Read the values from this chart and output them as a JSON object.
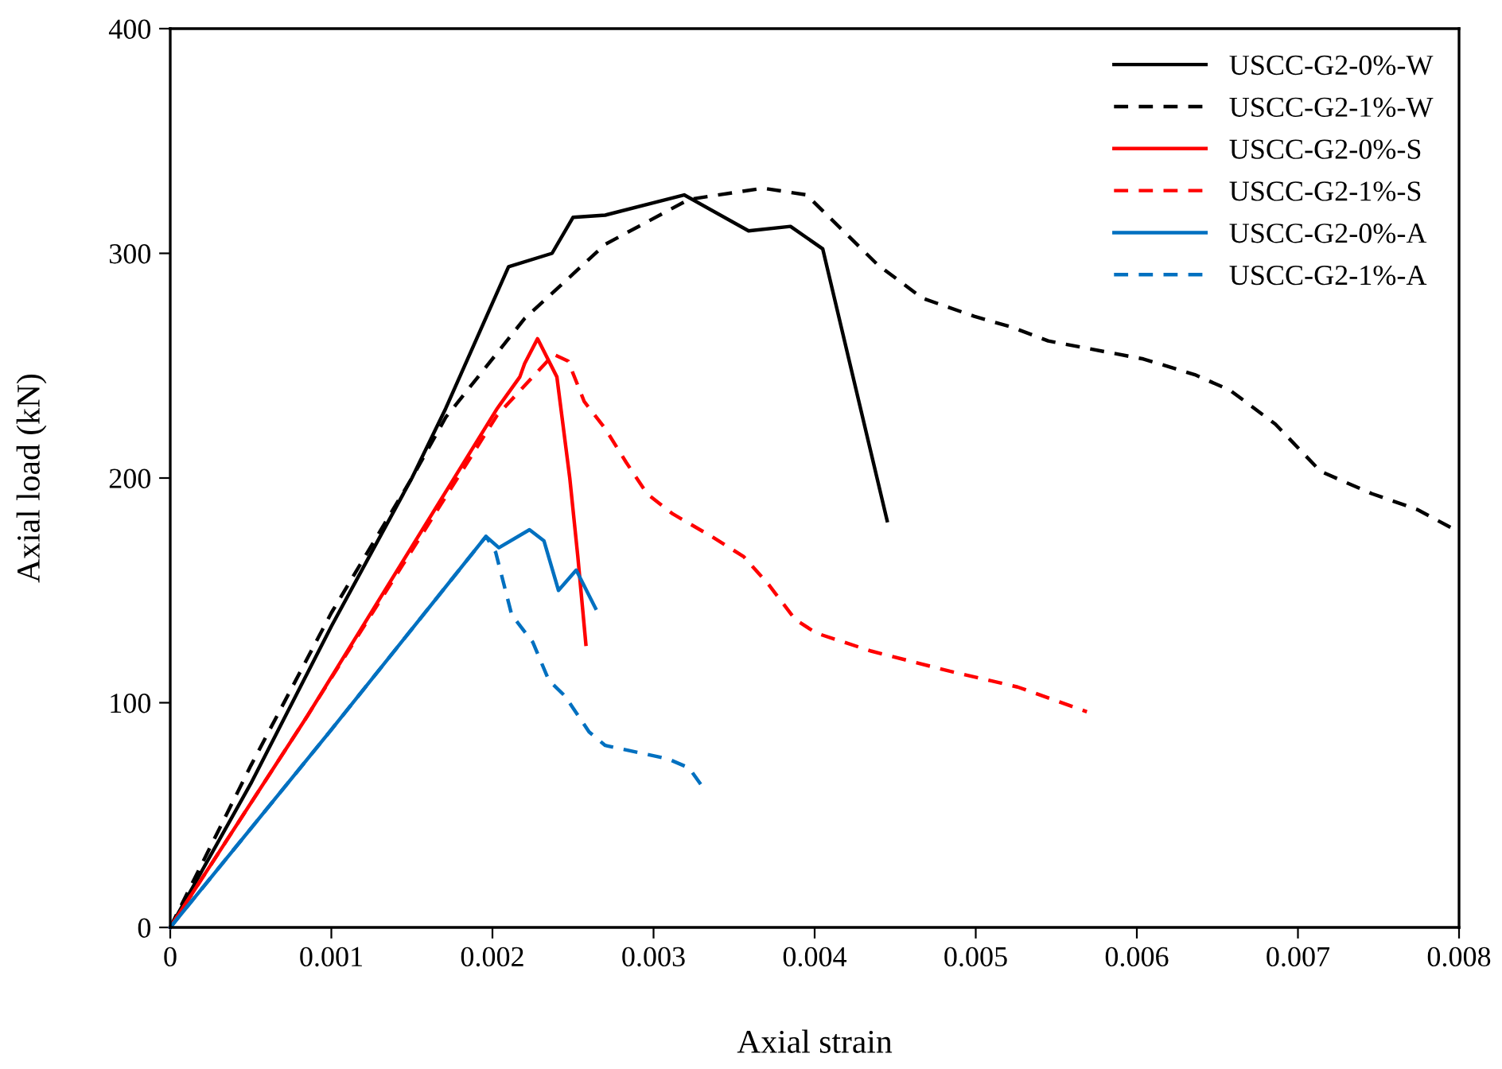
{
  "chart_data": {
    "type": "line",
    "xlabel": "Axial strain",
    "ylabel": "Axial load (kN)",
    "xlim": [
      0,
      0.008
    ],
    "ylim": [
      0,
      400
    ],
    "xticks": [
      0,
      0.001,
      0.002,
      0.003,
      0.004,
      0.005,
      0.006,
      0.007,
      0.008
    ],
    "yticks": [
      0,
      100,
      200,
      300,
      400
    ],
    "grid": false,
    "legend": "top right",
    "marker": "none",
    "series": [
      {
        "name": "USCC-G2-0%-W",
        "color": "#000000",
        "line_style": "solid",
        "x": [
          0,
          0.0005,
          0.001,
          0.0015,
          0.00171,
          0.0021,
          0.00237,
          0.0025,
          0.0027,
          0.00319,
          0.00359,
          0.00385,
          0.00405,
          0.00445
        ],
        "values": [
          0,
          64,
          134,
          200,
          231,
          294,
          300,
          316,
          317,
          326,
          310,
          312,
          302,
          181
        ]
      },
      {
        "name": "USCC-G2-1%-W",
        "color": "#000000",
        "line_style": "dashed",
        "x": [
          0,
          0.0005,
          0.001,
          0.0015,
          0.00171,
          0.0022,
          0.0027,
          0.00322,
          0.00368,
          0.00395,
          0.00439,
          0.00467,
          0.00499,
          0.00523,
          0.00545,
          0.00604,
          0.00636,
          0.00658,
          0.00686,
          0.00714,
          0.00746,
          0.00774,
          0.008
        ],
        "values": [
          0,
          72,
          140,
          200,
          227,
          271,
          304,
          324,
          329,
          326,
          295,
          280,
          272,
          267,
          261,
          253,
          246,
          239,
          224,
          203,
          193,
          186,
          176
        ]
      },
      {
        "name": "USCC-G2-0%-S",
        "color": "#ff0000",
        "line_style": "solid",
        "x": [
          0,
          0.00085,
          0.00203,
          0.00217,
          0.0022,
          0.00228,
          0.0024,
          0.00248,
          0.00253,
          0.00258
        ],
        "values": [
          0,
          94,
          231,
          245,
          251,
          262,
          245,
          200,
          165,
          126
        ]
      },
      {
        "name": "USCC-G2-1%-S",
        "color": "#ff0000",
        "line_style": "dashed",
        "x": [
          0,
          0.00085,
          0.00203,
          0.00238,
          0.00247,
          0.00257,
          0.0027,
          0.00283,
          0.00296,
          0.00312,
          0.00336,
          0.00356,
          0.00371,
          0.00388,
          0.00401,
          0.00435,
          0.00484,
          0.00526,
          0.00569
        ],
        "values": [
          0,
          94,
          228,
          255,
          252,
          234,
          222,
          207,
          193,
          184,
          174,
          165,
          153,
          137,
          131,
          123,
          114,
          107,
          96
        ]
      },
      {
        "name": "USCC-G2-0%-A",
        "color": "#0070c0",
        "line_style": "solid",
        "x": [
          0,
          0.001,
          0.00196,
          0.00204,
          0.00223,
          0.00232,
          0.00241,
          0.00252,
          0.00264
        ],
        "values": [
          0,
          88,
          174,
          169,
          177,
          172,
          150,
          159,
          142
        ]
      },
      {
        "name": "USCC-G2-1%-A",
        "color": "#0070c0",
        "line_style": "dashed",
        "x": [
          0,
          0.001,
          0.00196,
          0.00202,
          0.00212,
          0.00225,
          0.00235,
          0.00245,
          0.0026,
          0.0027,
          0.00309,
          0.00322,
          0.00331
        ],
        "values": [
          0,
          88,
          174,
          167,
          139,
          127,
          110,
          103,
          87,
          81,
          75,
          71,
          62
        ]
      }
    ]
  }
}
